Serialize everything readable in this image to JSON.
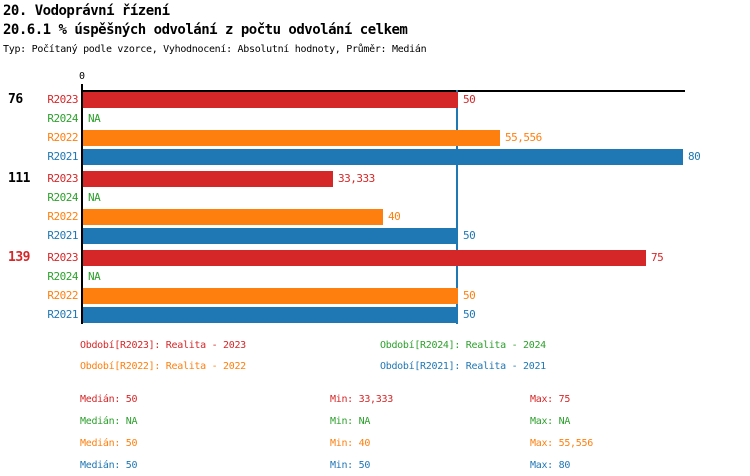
{
  "header": {
    "title": "20. Vodoprávní řízení",
    "subtitle": "20.6.1 % úspěšných odvolání z počtu odvolání celkem",
    "meta": "Typ: Počítaný podle vzorce, Vyhodnocení: Absolutní hodnoty, Průměr: Medián"
  },
  "palette": {
    "R2023": "#d62728",
    "R2024": "#2ca02c",
    "R2022": "#ff7f0e",
    "R2021": "#1f77b4",
    "axis": "#000000",
    "median_line": "#1f77b4",
    "text": "#000000",
    "highlight_group": "#d62728",
    "background": "#ffffff"
  },
  "chart_data": {
    "type": "bar",
    "orientation": "horizontal",
    "title": "20.6.1 % úspěšných odvolání z počtu odvolání celkem",
    "xlim": [
      0,
      80.4
    ],
    "x_tick_labels": [
      "0"
    ],
    "grid": false,
    "median_line_value": 50,
    "na_text": "NA",
    "series_order": [
      "R2023",
      "R2024",
      "R2022",
      "R2021"
    ],
    "groups": [
      {
        "label": "76",
        "highlighted": false,
        "values": {
          "R2023": 50,
          "R2024": null,
          "R2022": 55.556,
          "R2021": 80
        },
        "display": {
          "R2023": "50",
          "R2024": "NA",
          "R2022": "55,556",
          "R2021": "80"
        }
      },
      {
        "label": "111",
        "highlighted": false,
        "values": {
          "R2023": 33.333,
          "R2024": null,
          "R2022": 40,
          "R2021": 50
        },
        "display": {
          "R2023": "33,333",
          "R2024": "NA",
          "R2022": "40",
          "R2021": "50"
        }
      },
      {
        "label": "139",
        "highlighted": true,
        "values": {
          "R2023": 75,
          "R2024": null,
          "R2022": 50,
          "R2021": 50
        },
        "display": {
          "R2023": "75",
          "R2024": "NA",
          "R2022": "50",
          "R2021": "50"
        }
      }
    ]
  },
  "legend": {
    "items": [
      {
        "series": "R2023",
        "label": "Období[R2023]: Realita - 2023"
      },
      {
        "series": "R2024",
        "label": "Období[R2024]: Realita - 2024"
      },
      {
        "series": "R2022",
        "label": "Období[R2022]: Realita - 2022"
      },
      {
        "series": "R2021",
        "label": "Období[R2021]: Realita - 2021"
      }
    ]
  },
  "stats": {
    "median_label": "Medián",
    "min_label": "Min",
    "max_label": "Max",
    "rows": [
      {
        "series": "R2023",
        "median": "50",
        "min": "33,333",
        "max": "75"
      },
      {
        "series": "R2024",
        "median": "NA",
        "min": "NA",
        "max": "NA"
      },
      {
        "series": "R2022",
        "median": "50",
        "min": "40",
        "max": "55,556"
      },
      {
        "series": "R2021",
        "median": "50",
        "min": "50",
        "max": "80"
      }
    ]
  }
}
